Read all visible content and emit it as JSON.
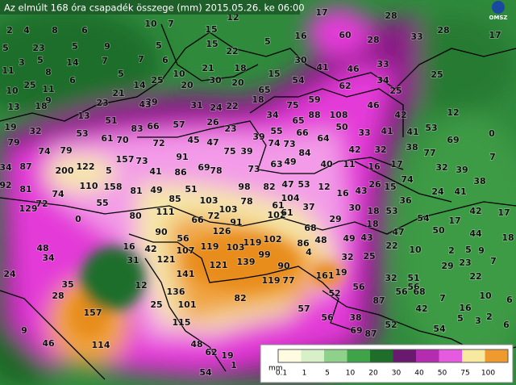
{
  "title": "Az elmúlt 168 óra csapadék összege (mm) 2015.05.26. ke 06:00",
  "logo": "OMSZ",
  "legend": {
    "unit": "mm",
    "ticks": [
      0.1,
      1,
      5,
      10,
      20,
      30,
      40,
      50,
      75,
      100
    ]
  },
  "labels": [
    2,
    4,
    8,
    6,
    10,
    7,
    15,
    12,
    17,
    28,
    5,
    23,
    5,
    9,
    5,
    15,
    5,
    16,
    60,
    28,
    33,
    28,
    17,
    3,
    5,
    14,
    7,
    7,
    6,
    22,
    30,
    41,
    46,
    33,
    11,
    8,
    5,
    10,
    21,
    18,
    15,
    65,
    54,
    62,
    34,
    25,
    25,
    6,
    14,
    25,
    20,
    30,
    20,
    10,
    11,
    9,
    21,
    29,
    18,
    13,
    18,
    23,
    43,
    31,
    24,
    22,
    75,
    59,
    108,
    46,
    25,
    19,
    32,
    13,
    51,
    53,
    61,
    70,
    83,
    66,
    57,
    26,
    23,
    34,
    65,
    88,
    50,
    33,
    41,
    41,
    42,
    53,
    12,
    79,
    74,
    79,
    72,
    45,
    47,
    75,
    39,
    39,
    55,
    74,
    73,
    66,
    64,
    42,
    32,
    38,
    77,
    69,
    0,
    34,
    87,
    200,
    122,
    157,
    73,
    5,
    91,
    69,
    73,
    63,
    49,
    84,
    40,
    11,
    16,
    17,
    32,
    39,
    7,
    92,
    81,
    74,
    110,
    158,
    81,
    49,
    41,
    86,
    78,
    98,
    82,
    47,
    53,
    12,
    16,
    43,
    26,
    15,
    74,
    36,
    24,
    41,
    38,
    129,
    72,
    55,
    85,
    51,
    103,
    103,
    78,
    61,
    104,
    37,
    30,
    18,
    53,
    54,
    17,
    42,
    17,
    0,
    80,
    111,
    66,
    72,
    126,
    91,
    102,
    61,
    68,
    29,
    18,
    47,
    50,
    44,
    18,
    48,
    16,
    42,
    56,
    90,
    107,
    119,
    103,
    119,
    102,
    86,
    48,
    49,
    43,
    22,
    10,
    2,
    5,
    7,
    34,
    31,
    121,
    121,
    139,
    99,
    90,
    4,
    32,
    25,
    29,
    23,
    9,
    24,
    141,
    119,
    77,
    161,
    19,
    32,
    51,
    22,
    35,
    12,
    136,
    56,
    56,
    68,
    28,
    25,
    101,
    82,
    52,
    56,
    7,
    10,
    157,
    57,
    87,
    42,
    16,
    6,
    9,
    115,
    56,
    38,
    52,
    5,
    6,
    46,
    114,
    48,
    69,
    87,
    54,
    3,
    2,
    62,
    19,
    54,
    1
  ]
}
